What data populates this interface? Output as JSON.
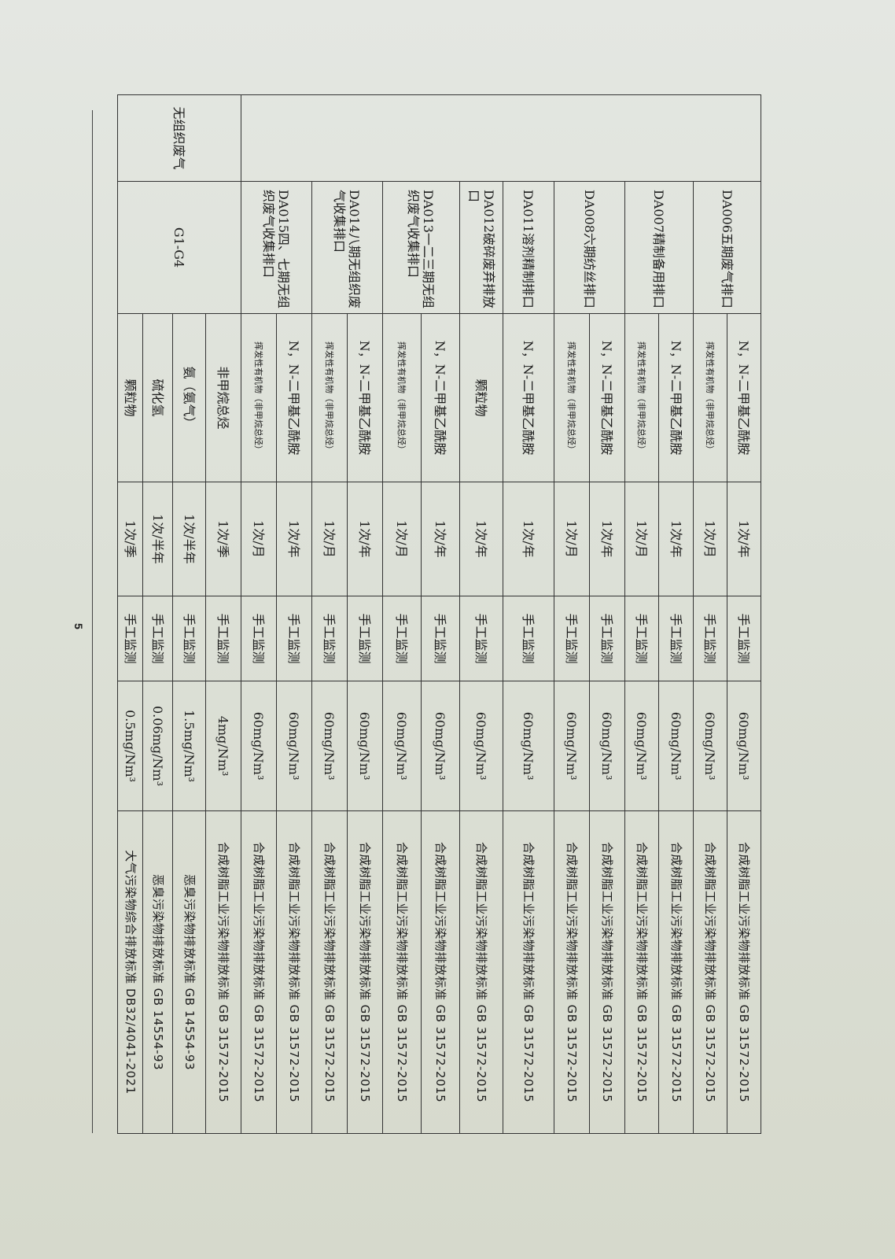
{
  "table": {
    "categories": [
      {
        "label": "",
        "rowspan": 14
      },
      {
        "label": "无组织废气",
        "rowspan": 4
      }
    ],
    "rows": [
      {
        "outlet": "DA006五期废气排口",
        "outlet_rowspan": 2,
        "pollutant": "N，N-二甲基乙酰胺",
        "frequency": "1次/年",
        "method": "手工监测",
        "limit": "60mg/Nm³",
        "standard": "合成树脂工业污染物排放标准 GB 31572-2015"
      },
      {
        "pollutant": "挥发性有机物（非甲烷总烃）",
        "frequency": "1次/月",
        "method": "手工监测",
        "limit": "60mg/Nm³",
        "standard": "合成树脂工业污染物排放标准 GB 31572-2015"
      },
      {
        "outlet": "DA007精制备用排口",
        "outlet_rowspan": 2,
        "pollutant": "N，N-二甲基乙酰胺",
        "frequency": "1次/年",
        "method": "手工监测",
        "limit": "60mg/Nm³",
        "standard": "合成树脂工业污染物排放标准 GB 31572-2015"
      },
      {
        "pollutant": "挥发性有机物（非甲烷总烃）",
        "frequency": "1次/月",
        "method": "手工监测",
        "limit": "60mg/Nm³",
        "standard": "合成树脂工业污染物排放标准 GB 31572-2015"
      },
      {
        "outlet": "DA008六期纺丝排口",
        "outlet_rowspan": 2,
        "pollutant": "N，N-二甲基乙酰胺",
        "frequency": "1次/年",
        "method": "手工监测",
        "limit": "60mg/Nm³",
        "standard": "合成树脂工业污染物排放标准 GB 31572-2015"
      },
      {
        "pollutant": "挥发性有机物（非甲烷总烃）",
        "frequency": "1次/月",
        "method": "手工监测",
        "limit": "60mg/Nm³",
        "standard": "合成树脂工业污染物排放标准 GB 31572-2015"
      },
      {
        "outlet": "DA011溶剂精制排口",
        "outlet_rowspan": 1,
        "pollutant": "N，N-二甲基乙酰胺",
        "frequency": "1次/年",
        "method": "手工监测",
        "limit": "60mg/Nm³",
        "standard": "合成树脂工业污染物排放标准 GB 31572-2015"
      },
      {
        "outlet": "DA012破碎废弃排放口",
        "outlet_rowspan": 1,
        "pollutant": "颗粒物",
        "frequency": "1次/年",
        "method": "手工监测",
        "limit": "60mg/Nm³",
        "standard": "合成树脂工业污染物排放标准 GB 31572-2015"
      },
      {
        "outlet": "DA013一二三期无组织废气收集排口",
        "outlet_rowspan": 2,
        "pollutant": "N，N-二甲基乙酰胺",
        "frequency": "1次/年",
        "method": "手工监测",
        "limit": "60mg/Nm³",
        "standard": "合成树脂工业污染物排放标准 GB 31572-2015"
      },
      {
        "pollutant": "挥发性有机物（非甲烷总烃）",
        "frequency": "1次/月",
        "method": "手工监测",
        "limit": "60mg/Nm³",
        "standard": "合成树脂工业污染物排放标准 GB 31572-2015"
      },
      {
        "outlet": "DA014八期无组织废气收集排口",
        "outlet_rowspan": 2,
        "pollutant": "N，N-二甲基乙酰胺",
        "frequency": "1次/年",
        "method": "手工监测",
        "limit": "60mg/Nm³",
        "standard": "合成树脂工业污染物排放标准 GB 31572-2015"
      },
      {
        "pollutant": "挥发性有机物（非甲烷总烃）",
        "frequency": "1次/月",
        "method": "手工监测",
        "limit": "60mg/Nm³",
        "standard": "合成树脂工业污染物排放标准 GB 31572-2015"
      },
      {
        "outlet": "DA015四、七期无组织废气收集排口",
        "outlet_rowspan": 2,
        "pollutant": "N，N-二甲基乙酰胺",
        "frequency": "1次/年",
        "method": "手工监测",
        "limit": "60mg/Nm³",
        "standard": "合成树脂工业污染物排放标准 GB 31572-2015"
      },
      {
        "pollutant": "挥发性有机物（非甲烷总烃）",
        "frequency": "1次/月",
        "method": "手工监测",
        "limit": "60mg/Nm³",
        "standard": "合成树脂工业污染物排放标准 GB 31572-2015"
      },
      {
        "outlet": "G1-G4",
        "outlet_rowspan": 4,
        "pollutant": "非甲烷总烃",
        "frequency": "1次/季",
        "method": "手工监测",
        "limit": "4mg/Nm³",
        "standard": "合成树脂工业污染物排放标准 GB 31572-2015"
      },
      {
        "pollutant": "氨（氨气）",
        "frequency": "1次/半年",
        "method": "手工监测",
        "limit": "1.5mg/Nm³",
        "standard": "恶臭污染物排放标准 GB 14554-93"
      },
      {
        "pollutant": "硫化氢",
        "frequency": "1次/半年",
        "method": "手工监测",
        "limit": "0.06mg/Nm³",
        "standard": "恶臭污染物排放标准 GB 14554-93"
      },
      {
        "pollutant": "颗粒物",
        "frequency": "1次/季",
        "method": "手工监测",
        "limit": "0.5mg/Nm³",
        "standard": "大气污染物综合排放标准 DB32/4041-2021"
      }
    ]
  },
  "footer": {
    "page_number": "5"
  }
}
